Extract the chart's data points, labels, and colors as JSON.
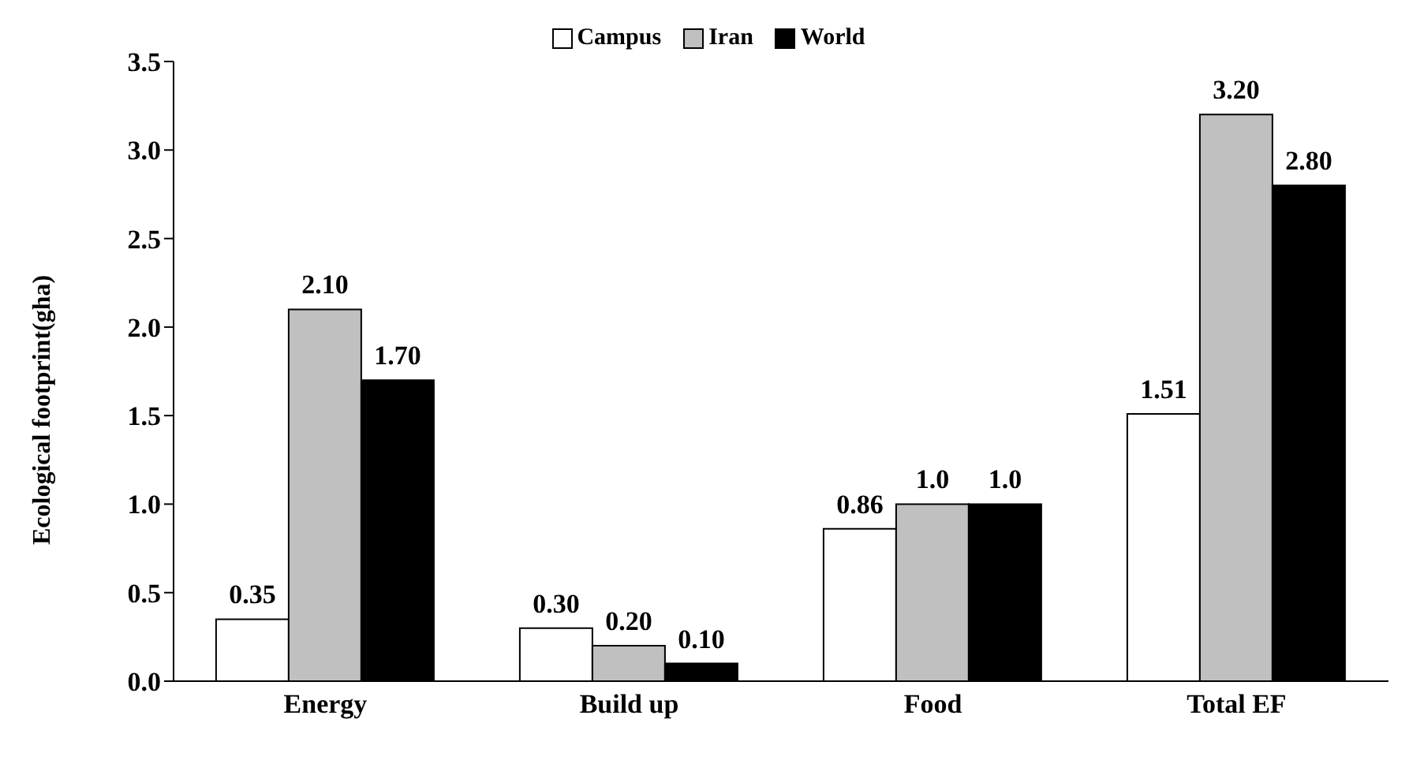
{
  "chart_data": {
    "type": "bar",
    "ylabel": "Ecological footprint(gha)",
    "categories": [
      "Energy",
      "Build up",
      "Food",
      "Total EF"
    ],
    "series": [
      {
        "name": "Campus",
        "color": "#ffffff",
        "values": [
          0.35,
          0.3,
          0.86,
          1.51
        ],
        "value_labels": [
          "0.35",
          "0.30",
          "0.86",
          "1.51"
        ]
      },
      {
        "name": "Iran",
        "color": "#c0c0c0",
        "values": [
          2.1,
          0.2,
          1.0,
          3.2
        ],
        "value_labels": [
          "2.10",
          "0.20",
          "1.0",
          "3.20"
        ]
      },
      {
        "name": "World",
        "color": "#000000",
        "values": [
          1.7,
          0.1,
          1.0,
          2.8
        ],
        "value_labels": [
          "1.70",
          "0.10",
          "1.0",
          "2.80"
        ]
      }
    ],
    "ylim": [
      0,
      3.5
    ],
    "yticks": [
      {
        "value": 0,
        "label": "0.0"
      },
      0.5,
      {
        "value": 1,
        "label": "1.0"
      },
      1.5,
      {
        "value": 2,
        "label": "2.0"
      },
      2.5,
      {
        "value": 3,
        "label": "3.0"
      },
      3.5
    ],
    "legend": "top",
    "grid": false
  }
}
